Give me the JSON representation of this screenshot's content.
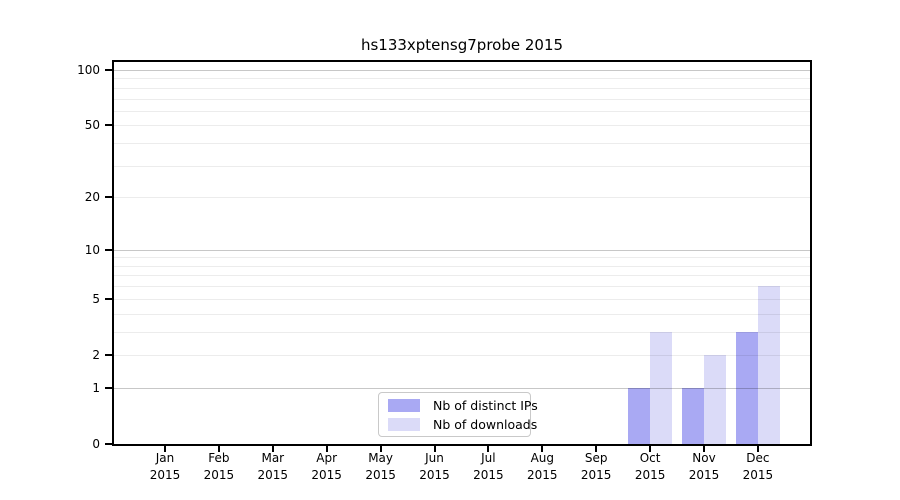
{
  "title": "hs133xptensg7probe 2015",
  "colors": {
    "distinct_ips_bar": "#a9a9f3",
    "downloads_bar": "#dbdbf8",
    "grid_major": "#c7c7c7",
    "grid_minor": "#ededed",
    "axis": "#000000",
    "legend_border": "#c9c9c9"
  },
  "legend": {
    "items": [
      {
        "label": "Nb of distinct IPs"
      },
      {
        "label": "Nb of downloads"
      }
    ]
  },
  "chart_data": {
    "type": "bar",
    "title": "hs133xptensg7probe 2015",
    "categories": [
      {
        "month": "Jan",
        "year": "2015"
      },
      {
        "month": "Feb",
        "year": "2015"
      },
      {
        "month": "Mar",
        "year": "2015"
      },
      {
        "month": "Apr",
        "year": "2015"
      },
      {
        "month": "May",
        "year": "2015"
      },
      {
        "month": "Jun",
        "year": "2015"
      },
      {
        "month": "Jul",
        "year": "2015"
      },
      {
        "month": "Aug",
        "year": "2015"
      },
      {
        "month": "Sep",
        "year": "2015"
      },
      {
        "month": "Oct",
        "year": "2015"
      },
      {
        "month": "Nov",
        "year": "2015"
      },
      {
        "month": "Dec",
        "year": "2015"
      }
    ],
    "series": [
      {
        "name": "Nb of distinct IPs",
        "color": "#a9a9f3",
        "values": [
          0,
          0,
          0,
          0,
          0,
          0,
          0,
          0,
          0,
          1,
          1,
          3
        ]
      },
      {
        "name": "Nb of downloads",
        "color": "#dbdbf8",
        "values": [
          0,
          0,
          0,
          0,
          0,
          0,
          0,
          0,
          0,
          3,
          2,
          6
        ]
      }
    ],
    "xlabel": "",
    "ylabel": "",
    "yscale": "log1p",
    "ylim": [
      0,
      110
    ],
    "yticks": [
      0,
      1,
      2,
      5,
      10,
      20,
      50,
      100
    ],
    "grid_major_values": [
      1,
      10,
      100
    ],
    "grid_minor_values": [
      2,
      3,
      4,
      5,
      6,
      7,
      8,
      9,
      20,
      30,
      40,
      50,
      60,
      70,
      80,
      90
    ],
    "grid": "horizontal",
    "legend_position": "bottom-center-inside"
  }
}
